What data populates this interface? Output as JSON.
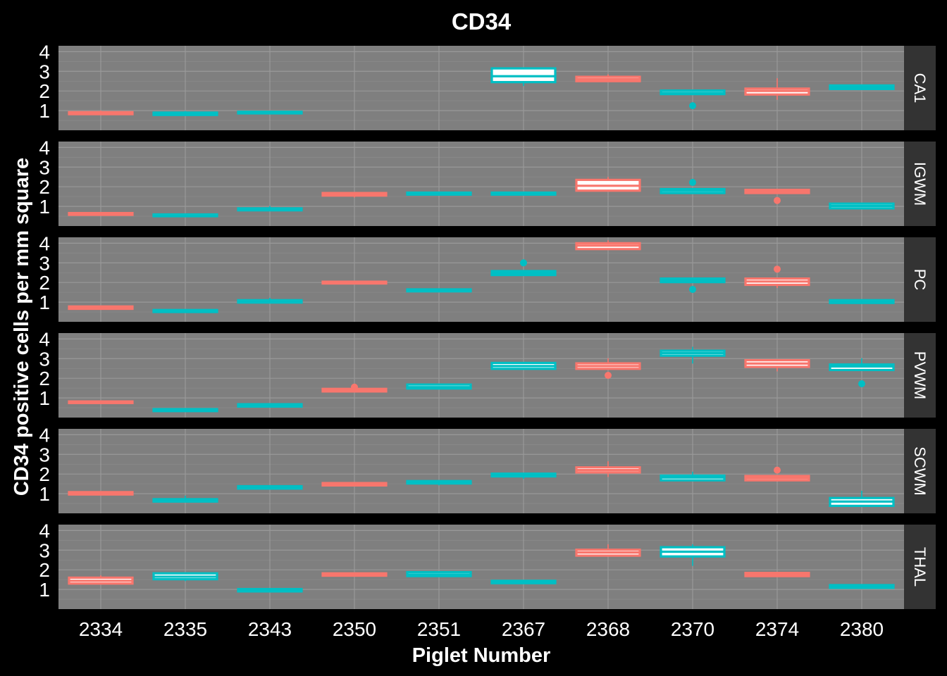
{
  "chart_data": {
    "type": "boxplot",
    "title": "CD34",
    "xlabel": "Piglet Number",
    "ylabel": "CD34 positive cells per mm square",
    "x_categories": [
      "2334",
      "2335",
      "2343",
      "2350",
      "2351",
      "2367",
      "2368",
      "2370",
      "2374",
      "2380"
    ],
    "y_ticks": [
      "1",
      "2",
      "3",
      "4"
    ],
    "ylim": [
      0,
      4.3
    ],
    "grid": true,
    "legend": "none",
    "colors": {
      "red": "#f8766d",
      "cyan": "#00bfc4",
      "panel_bg": "#7f7f7f",
      "strip_bg": "#333333",
      "background": "#000000"
    },
    "category_colors": [
      "red",
      "cyan",
      "cyan",
      "red",
      "cyan",
      "cyan",
      "red",
      "cyan",
      "red",
      "cyan"
    ],
    "panels": [
      {
        "label": "CA1",
        "boxes": [
          {
            "x": "2334",
            "q1": 0.82,
            "median": 0.87,
            "q3": 0.92,
            "min": 0.8,
            "max": 1.0,
            "outliers": []
          },
          {
            "x": "2335",
            "q1": 0.78,
            "median": 0.84,
            "q3": 0.9,
            "min": 0.76,
            "max": 0.98,
            "outliers": []
          },
          {
            "x": "2343",
            "q1": 0.86,
            "median": 0.9,
            "q3": 0.94,
            "min": 0.84,
            "max": 0.96,
            "outliers": []
          },
          {
            "x": "2367",
            "q1": 2.45,
            "median": 2.75,
            "q3": 3.15,
            "min": 2.25,
            "max": 3.2,
            "outliers": []
          },
          {
            "x": "2368",
            "q1": 2.5,
            "median": 2.6,
            "q3": 2.72,
            "min": 2.45,
            "max": 2.85,
            "outliers": []
          },
          {
            "x": "2370",
            "q1": 1.84,
            "median": 1.9,
            "q3": 2.02,
            "min": 1.8,
            "max": 2.06,
            "outliers": [
              1.25
            ]
          },
          {
            "x": "2374",
            "q1": 1.82,
            "median": 2.0,
            "q3": 2.12,
            "min": 1.55,
            "max": 2.65,
            "outliers": []
          },
          {
            "x": "2380",
            "q1": 2.1,
            "median": 2.2,
            "q3": 2.28,
            "min": 2.06,
            "max": 2.32,
            "outliers": []
          }
        ]
      },
      {
        "label": "IGWM",
        "boxes": [
          {
            "x": "2334",
            "q1": 0.57,
            "median": 0.62,
            "q3": 0.66,
            "min": 0.55,
            "max": 0.68,
            "outliers": []
          },
          {
            "x": "2335",
            "q1": 0.5,
            "median": 0.55,
            "q3": 0.59,
            "min": 0.48,
            "max": 0.62,
            "outliers": []
          },
          {
            "x": "2343",
            "q1": 0.8,
            "median": 0.85,
            "q3": 0.9,
            "min": 0.78,
            "max": 1.02,
            "outliers": []
          },
          {
            "x": "2350",
            "q1": 1.55,
            "median": 1.62,
            "q3": 1.68,
            "min": 1.45,
            "max": 1.7,
            "outliers": []
          },
          {
            "x": "2351",
            "q1": 1.6,
            "median": 1.65,
            "q3": 1.7,
            "min": 1.58,
            "max": 1.72,
            "outliers": []
          },
          {
            "x": "2367",
            "q1": 1.6,
            "median": 1.65,
            "q3": 1.7,
            "min": 1.58,
            "max": 1.72,
            "outliers": []
          },
          {
            "x": "2368",
            "q1": 1.8,
            "median": 2.05,
            "q3": 2.35,
            "min": 1.75,
            "max": 2.5,
            "outliers": []
          },
          {
            "x": "2370",
            "q1": 1.68,
            "median": 1.8,
            "q3": 1.88,
            "min": 1.65,
            "max": 1.9,
            "outliers": [
              2.22
            ]
          },
          {
            "x": "2374",
            "q1": 1.68,
            "median": 1.76,
            "q3": 1.84,
            "min": 1.65,
            "max": 1.86,
            "outliers": [
              1.3
            ]
          },
          {
            "x": "2380",
            "q1": 0.9,
            "median": 1.02,
            "q3": 1.14,
            "min": 0.85,
            "max": 1.16,
            "outliers": []
          }
        ]
      },
      {
        "label": "PC",
        "boxes": [
          {
            "x": "2334",
            "q1": 0.66,
            "median": 0.72,
            "q3": 0.78,
            "min": 0.64,
            "max": 0.8,
            "outliers": []
          },
          {
            "x": "2335",
            "q1": 0.5,
            "median": 0.55,
            "q3": 0.6,
            "min": 0.48,
            "max": 0.62,
            "outliers": []
          },
          {
            "x": "2343",
            "q1": 0.98,
            "median": 1.04,
            "q3": 1.1,
            "min": 0.96,
            "max": 1.22,
            "outliers": []
          },
          {
            "x": "2350",
            "q1": 1.95,
            "median": 2.0,
            "q3": 2.04,
            "min": 1.92,
            "max": 2.06,
            "outliers": []
          },
          {
            "x": "2351",
            "q1": 1.55,
            "median": 1.6,
            "q3": 1.65,
            "min": 1.53,
            "max": 1.67,
            "outliers": []
          },
          {
            "x": "2367",
            "q1": 2.38,
            "median": 2.48,
            "q3": 2.58,
            "min": 2.35,
            "max": 2.6,
            "outliers": [
              3.0
            ]
          },
          {
            "x": "2368",
            "q1": 3.7,
            "median": 3.88,
            "q3": 4.0,
            "min": 3.65,
            "max": 4.15,
            "outliers": []
          },
          {
            "x": "2370",
            "q1": 2.02,
            "median": 2.1,
            "q3": 2.2,
            "min": 2.0,
            "max": 2.22,
            "outliers": [
              1.65
            ]
          },
          {
            "x": "2374",
            "q1": 1.88,
            "median": 2.05,
            "q3": 2.2,
            "min": 1.72,
            "max": 2.25,
            "outliers": [
              2.68
            ]
          },
          {
            "x": "2380",
            "q1": 0.96,
            "median": 1.02,
            "q3": 1.1,
            "min": 0.94,
            "max": 1.12,
            "outliers": []
          }
        ]
      },
      {
        "label": "PVWM",
        "boxes": [
          {
            "x": "2334",
            "q1": 0.74,
            "median": 0.78,
            "q3": 0.82,
            "min": 0.72,
            "max": 0.84,
            "outliers": []
          },
          {
            "x": "2335",
            "q1": 0.33,
            "median": 0.38,
            "q3": 0.43,
            "min": 0.31,
            "max": 0.45,
            "outliers": []
          },
          {
            "x": "2343",
            "q1": 0.56,
            "median": 0.62,
            "q3": 0.68,
            "min": 0.54,
            "max": 0.7,
            "outliers": []
          },
          {
            "x": "2350",
            "q1": 1.33,
            "median": 1.4,
            "q3": 1.46,
            "min": 1.3,
            "max": 1.48,
            "outliers": [
              1.55
            ]
          },
          {
            "x": "2351",
            "q1": 1.48,
            "median": 1.55,
            "q3": 1.68,
            "min": 1.45,
            "max": 1.7,
            "outliers": []
          },
          {
            "x": "2367",
            "q1": 2.48,
            "median": 2.62,
            "q3": 2.78,
            "min": 2.45,
            "max": 2.82,
            "outliers": []
          },
          {
            "x": "2368",
            "q1": 2.48,
            "median": 2.62,
            "q3": 2.76,
            "min": 2.45,
            "max": 3.02,
            "outliers": [
              2.15
            ]
          },
          {
            "x": "2370",
            "q1": 3.15,
            "median": 3.28,
            "q3": 3.4,
            "min": 2.75,
            "max": 3.6,
            "outliers": []
          },
          {
            "x": "2374",
            "q1": 2.58,
            "median": 2.75,
            "q3": 2.92,
            "min": 2.35,
            "max": 2.95,
            "outliers": []
          },
          {
            "x": "2380",
            "q1": 2.42,
            "median": 2.6,
            "q3": 2.7,
            "min": 2.38,
            "max": 3.02,
            "outliers": [
              1.72
            ]
          }
        ]
      },
      {
        "label": "SCWM",
        "boxes": [
          {
            "x": "2334",
            "q1": 0.96,
            "median": 1.02,
            "q3": 1.08,
            "min": 0.94,
            "max": 1.1,
            "outliers": []
          },
          {
            "x": "2335",
            "q1": 0.6,
            "median": 0.66,
            "q3": 0.72,
            "min": 0.58,
            "max": 0.9,
            "outliers": []
          },
          {
            "x": "2343",
            "q1": 1.26,
            "median": 1.32,
            "q3": 1.38,
            "min": 1.24,
            "max": 1.4,
            "outliers": []
          },
          {
            "x": "2350",
            "q1": 1.42,
            "median": 1.48,
            "q3": 1.54,
            "min": 1.4,
            "max": 1.56,
            "outliers": []
          },
          {
            "x": "2351",
            "q1": 1.52,
            "median": 1.58,
            "q3": 1.64,
            "min": 1.42,
            "max": 1.66,
            "outliers": []
          },
          {
            "x": "2367",
            "q1": 1.88,
            "median": 1.95,
            "q3": 2.02,
            "min": 1.75,
            "max": 2.04,
            "outliers": []
          },
          {
            "x": "2368",
            "q1": 2.08,
            "median": 2.2,
            "q3": 2.34,
            "min": 1.85,
            "max": 2.65,
            "outliers": []
          },
          {
            "x": "2370",
            "q1": 1.68,
            "median": 1.82,
            "q3": 1.92,
            "min": 1.65,
            "max": 2.12,
            "outliers": []
          },
          {
            "x": "2374",
            "q1": 1.68,
            "median": 1.8,
            "q3": 1.9,
            "min": 1.62,
            "max": 1.92,
            "outliers": [
              2.2
            ]
          },
          {
            "x": "2380",
            "q1": 0.38,
            "median": 0.6,
            "q3": 0.78,
            "min": 0.35,
            "max": 1.15,
            "outliers": []
          }
        ]
      },
      {
        "label": "THAL",
        "boxes": [
          {
            "x": "2334",
            "q1": 1.3,
            "median": 1.44,
            "q3": 1.6,
            "min": 1.28,
            "max": 1.72,
            "outliers": []
          },
          {
            "x": "2335",
            "q1": 1.52,
            "median": 1.65,
            "q3": 1.82,
            "min": 1.42,
            "max": 1.84,
            "outliers": []
          },
          {
            "x": "2343",
            "q1": 0.9,
            "median": 0.96,
            "q3": 1.02,
            "min": 0.88,
            "max": 1.04,
            "outliers": []
          },
          {
            "x": "2350",
            "q1": 1.7,
            "median": 1.76,
            "q3": 1.82,
            "min": 1.68,
            "max": 1.84,
            "outliers": []
          },
          {
            "x": "2351",
            "q1": 1.68,
            "median": 1.76,
            "q3": 1.88,
            "min": 1.65,
            "max": 1.9,
            "outliers": []
          },
          {
            "x": "2367",
            "q1": 1.32,
            "median": 1.38,
            "q3": 1.44,
            "min": 1.3,
            "max": 1.46,
            "outliers": []
          },
          {
            "x": "2368",
            "q1": 2.72,
            "median": 2.88,
            "q3": 3.02,
            "min": 2.68,
            "max": 3.3,
            "outliers": []
          },
          {
            "x": "2370",
            "q1": 2.68,
            "median": 2.92,
            "q3": 3.15,
            "min": 2.2,
            "max": 3.3,
            "outliers": []
          },
          {
            "x": "2374",
            "q1": 1.68,
            "median": 1.76,
            "q3": 1.84,
            "min": 1.66,
            "max": 1.86,
            "outliers": []
          },
          {
            "x": "2380",
            "q1": 1.08,
            "median": 1.15,
            "q3": 1.22,
            "min": 1.06,
            "max": 1.24,
            "outliers": []
          }
        ]
      }
    ]
  }
}
